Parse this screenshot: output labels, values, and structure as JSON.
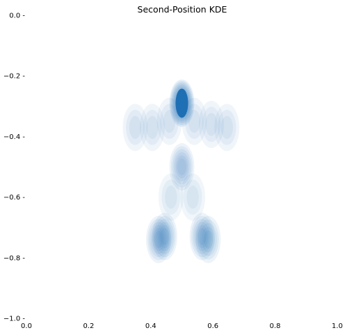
{
  "chart_data": {
    "type": "heatmap",
    "title": "Second-Position KDE",
    "xlabel": "",
    "ylabel": "",
    "xlim": [
      0.0,
      1.0
    ],
    "ylim": [
      -1.0,
      0.0
    ],
    "x_ticks": [
      "0.0",
      "0.2",
      "0.4",
      "0.6",
      "0.8",
      "1.0"
    ],
    "y_ticks": [
      "0.0",
      "−0.2",
      "−0.4",
      "−0.6",
      "−0.8",
      "−1.0"
    ],
    "grid": false,
    "colormap": "Blues",
    "fill_color": "#1f6fb4",
    "density_peaks": [
      {
        "x": 0.5,
        "y": -0.29,
        "density": 1.0
      },
      {
        "x": 0.5,
        "y": -0.5,
        "density": 0.55
      },
      {
        "x": 0.445,
        "y": -0.73,
        "density": 0.6
      },
      {
        "x": 0.425,
        "y": -0.74,
        "density": 0.55
      },
      {
        "x": 0.565,
        "y": -0.73,
        "density": 0.55
      },
      {
        "x": 0.585,
        "y": -0.74,
        "density": 0.5
      },
      {
        "x": 0.35,
        "y": -0.37,
        "density": 0.25
      },
      {
        "x": 0.405,
        "y": -0.37,
        "density": 0.25
      },
      {
        "x": 0.595,
        "y": -0.36,
        "density": 0.25
      },
      {
        "x": 0.645,
        "y": -0.37,
        "density": 0.25
      },
      {
        "x": 0.465,
        "y": -0.6,
        "density": 0.2
      },
      {
        "x": 0.535,
        "y": -0.6,
        "density": 0.2
      },
      {
        "x": 0.46,
        "y": -0.35,
        "density": 0.25
      },
      {
        "x": 0.54,
        "y": -0.35,
        "density": 0.25
      }
    ]
  }
}
